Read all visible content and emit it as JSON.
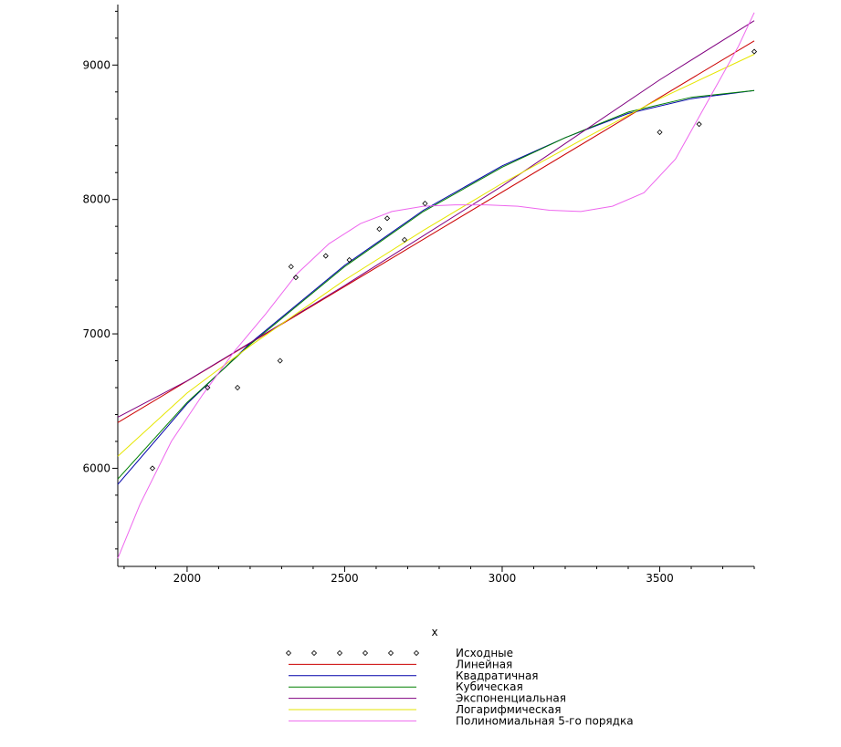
{
  "chart_data": {
    "type": "line",
    "title": "",
    "xlabel": "x",
    "ylabel": "",
    "xlim": [
      1780,
      3800
    ],
    "ylim": [
      5270,
      9450
    ],
    "x_ticks": [
      2000,
      2500,
      3000,
      3500
    ],
    "y_ticks": [
      6000,
      7000,
      8000,
      9000
    ],
    "x_tick_labels": [
      "2000",
      "2500",
      "3000",
      "3500"
    ],
    "y_tick_labels": [
      "6000",
      "7000",
      "8000",
      "9000"
    ],
    "grid": false,
    "legend_position": "bottom",
    "series": [
      {
        "name": "Исходные",
        "kind": "points",
        "color": "#000000",
        "points": [
          [
            1890,
            6000
          ],
          [
            2065,
            6600
          ],
          [
            2160,
            6600
          ],
          [
            2295,
            6800
          ],
          [
            2330,
            7500
          ],
          [
            2345,
            7420
          ],
          [
            2440,
            7580
          ],
          [
            2515,
            7550
          ],
          [
            2610,
            7780
          ],
          [
            2635,
            7860
          ],
          [
            2690,
            7700
          ],
          [
            2755,
            7970
          ],
          [
            3500,
            8500
          ],
          [
            3625,
            8560
          ],
          [
            3800,
            9100
          ]
        ]
      },
      {
        "name": "Линейная",
        "kind": "curve",
        "color": "#cc0000",
        "x": [
          1780,
          3800
        ],
        "y": [
          6340,
          9180
        ]
      },
      {
        "name": "Квадратичная",
        "kind": "curve",
        "color": "#0000aa",
        "x": [
          1780,
          2000,
          2200,
          2500,
          2750,
          3000,
          3200,
          3400,
          3600,
          3800
        ],
        "y": [
          5880,
          6480,
          6930,
          7510,
          7920,
          8250,
          8460,
          8640,
          8750,
          8810
        ]
      },
      {
        "name": "Кубическая",
        "kind": "curve",
        "color": "#008000",
        "x": [
          1780,
          2000,
          2200,
          2500,
          2750,
          3000,
          3200,
          3400,
          3600,
          3800
        ],
        "y": [
          5920,
          6490,
          6920,
          7500,
          7910,
          8240,
          8460,
          8650,
          8760,
          8810
        ]
      },
      {
        "name": "Экспоненциальная",
        "kind": "curve",
        "color": "#800080",
        "x": [
          1780,
          2000,
          2500,
          3000,
          3500,
          3800
        ],
        "y": [
          6380,
          6650,
          7360,
          8100,
          8890,
          9330
        ]
      },
      {
        "name": "Логарифмическая",
        "kind": "curve",
        "color": "#e6e600",
        "x": [
          1780,
          2000,
          2200,
          2500,
          2750,
          3000,
          3250,
          3500,
          3800
        ],
        "y": [
          6090,
          6560,
          6910,
          7400,
          7770,
          8120,
          8440,
          8750,
          9080
        ]
      },
      {
        "name": "Полиномиальная 5-го порядка",
        "kind": "curve",
        "color": "#ee66ee",
        "x": [
          1780,
          1850,
          1950,
          2050,
          2150,
          2250,
          2350,
          2450,
          2550,
          2650,
          2750,
          2850,
          2950,
          3050,
          3150,
          3250,
          3350,
          3450,
          3550,
          3650,
          3750,
          3800
        ],
        "y": [
          5330,
          5730,
          6200,
          6550,
          6870,
          7150,
          7450,
          7670,
          7820,
          7910,
          7950,
          7960,
          7960,
          7950,
          7920,
          7910,
          7950,
          8050,
          8300,
          8720,
          9140,
          9390
        ]
      }
    ]
  }
}
